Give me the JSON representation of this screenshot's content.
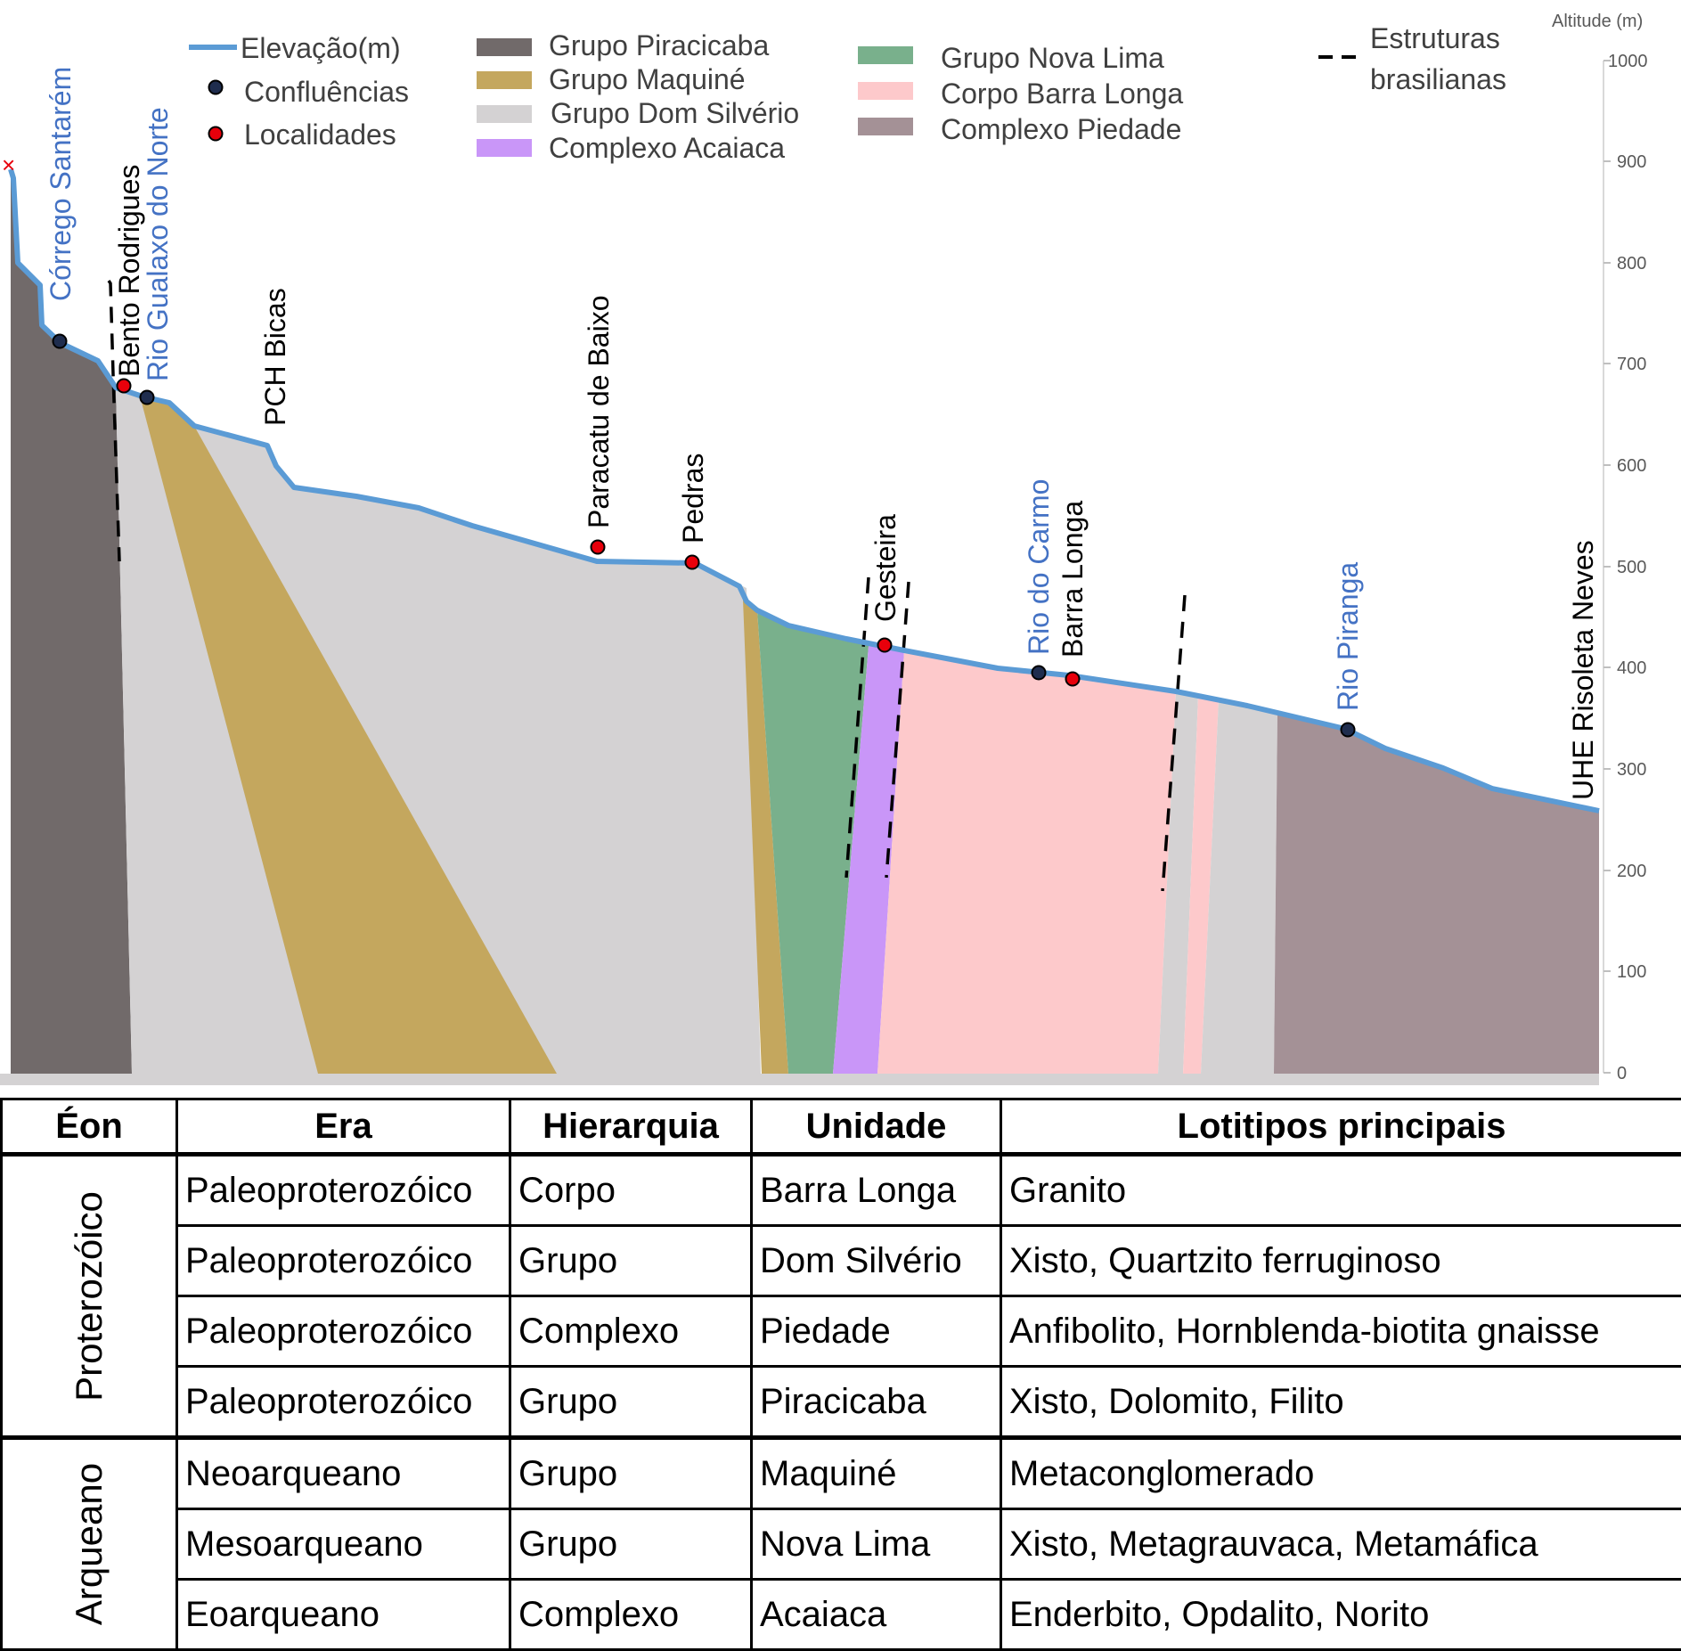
{
  "profile": {
    "axis_title": "Altitude (m)",
    "y_ticks": [
      "0",
      "100",
      "200",
      "300",
      "400",
      "500",
      "600",
      "700",
      "800",
      "900",
      "1000"
    ],
    "legend": {
      "elevation": "Elevação(m)",
      "confluences": "Confluências",
      "localities": "Localidades",
      "structures_line1": "Estruturas",
      "structures_line2": "brasilianas",
      "units": [
        {
          "label": "Grupo Piracicaba",
          "color": "#716a6a"
        },
        {
          "label": "Grupo Maquiné",
          "color": "#c4a75e"
        },
        {
          "label": "Grupo Dom Silvério",
          "color": "#d4d2d3"
        },
        {
          "label": "Complexo Acaiaca",
          "color": "#c996f8"
        },
        {
          "label": "Grupo Nova Lima",
          "color": "#79b08c"
        },
        {
          "label": "Corpo Barra Longa",
          "color": "#fdc9cb"
        },
        {
          "label": "Complexo Piedade",
          "color": "#a49196"
        }
      ]
    },
    "colors": {
      "elevation_line": "#5b9bd5",
      "confluence_marker": "#1f2d4e",
      "locality_marker": "#e8000b",
      "place_blue": "#4472C4"
    },
    "places": {
      "corrego_santarem": "Córrego Santarém",
      "bento_rodrigues": "Bento Rodrigues",
      "rio_gualaxo": "Rio Gualaxo do Norte",
      "pch_bicas": "PCH Bicas",
      "paracatu": "Paracatu de Baixo",
      "pedras": "Pedras",
      "gesteira": "Gesteira",
      "rio_do_carmo": "Rio do Carmo",
      "barra_longa": "Barra Longa",
      "rio_piranga": "Rio Piranga",
      "uhe": "UHE Risoleta Neves"
    }
  },
  "table": {
    "headers": [
      "Éon",
      "Era",
      "Hierarquia",
      "Unidade",
      "Lotitipos principais"
    ],
    "groups": [
      {
        "eon": "Proterozóico",
        "rows": [
          [
            "Paleoproterozóico",
            "Corpo",
            "Barra Longa",
            "Granito"
          ],
          [
            "Paleoproterozóico",
            "Grupo",
            "Dom Silvério",
            "Xisto, Quartzito ferruginoso"
          ],
          [
            "Paleoproterozóico",
            "Complexo",
            "Piedade",
            "Anfibolito, Hornblenda-biotita gnaisse"
          ],
          [
            "Paleoproterozóico",
            "Grupo",
            "Piracicaba",
            "Xisto, Dolomito, Filito"
          ]
        ]
      },
      {
        "eon": "Arqueano",
        "rows": [
          [
            "Neoarqueano",
            "Grupo",
            "Maquiné",
            "Metaconglomerado"
          ],
          [
            "Mesoarqueano",
            "Grupo",
            "Nova Lima",
            "Xisto, Metagrauvaca, Metamáfica"
          ],
          [
            "Eoarqueano",
            "Complexo",
            "Acaiaca",
            "Enderbito, Opdalito, Norito"
          ]
        ]
      }
    ]
  }
}
